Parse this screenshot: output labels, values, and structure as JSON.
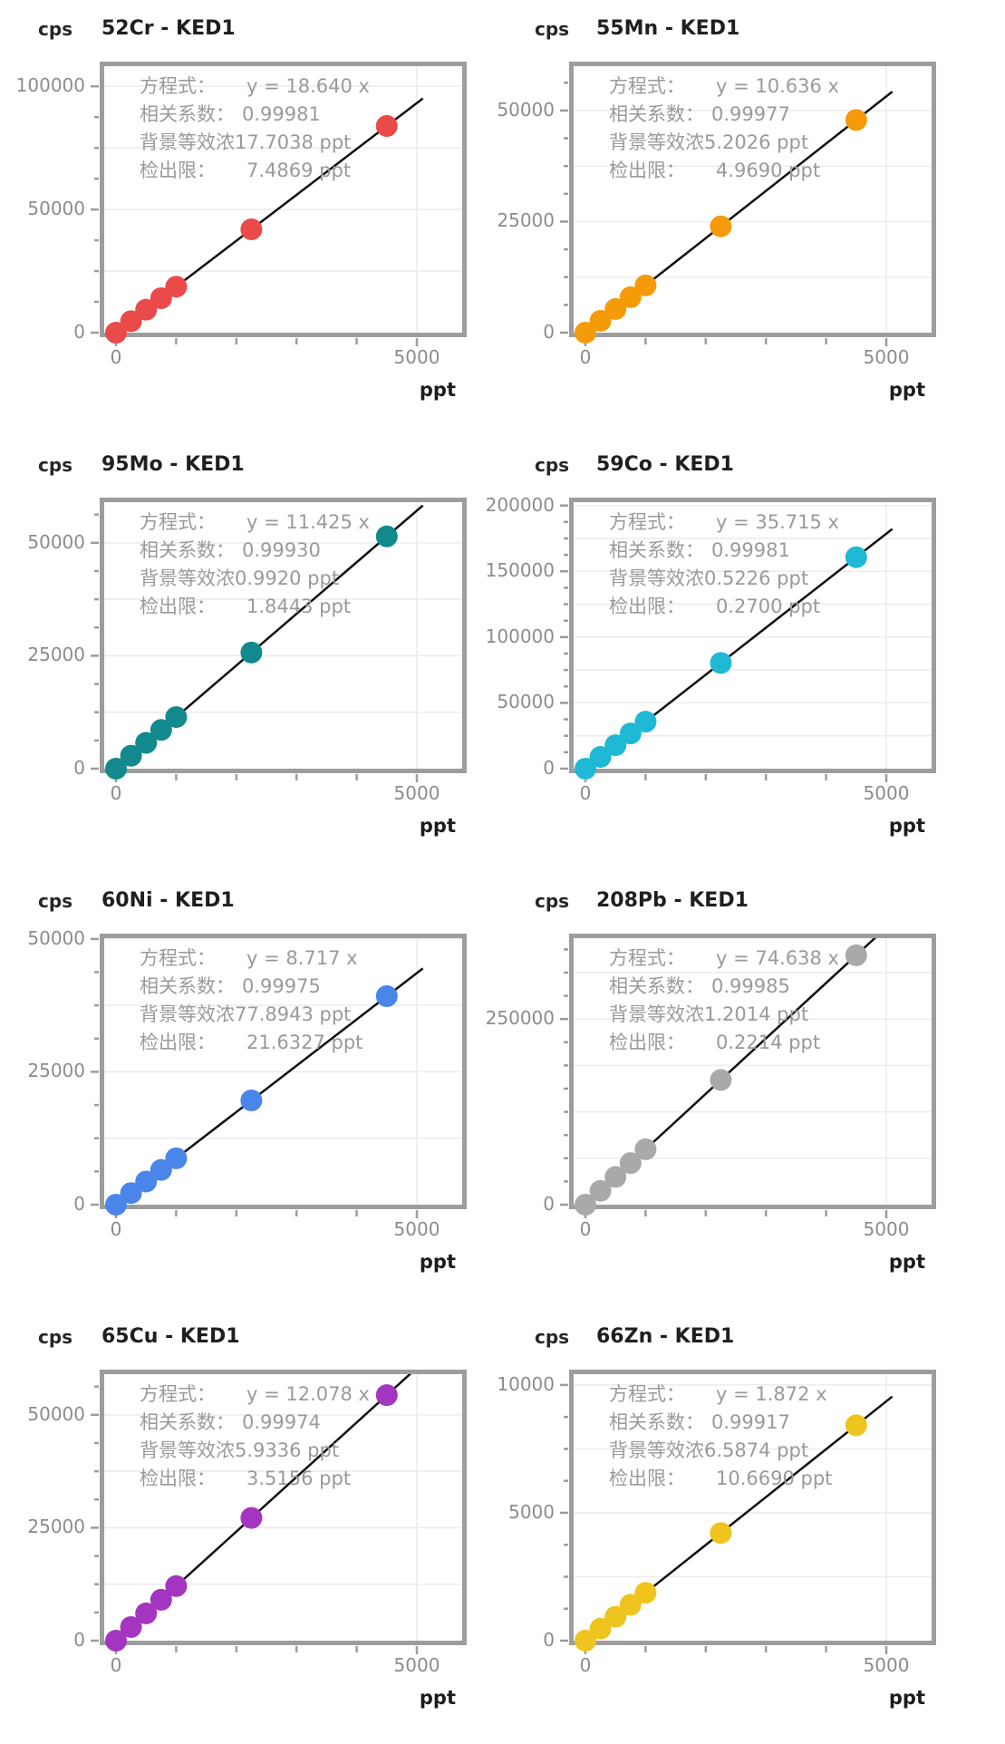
{
  "page": {
    "background": "#ffffff"
  },
  "style": {
    "axis_color": "#9d9d9d",
    "grid_color": "#ececec",
    "fit_line_color": "#111111",
    "annotation_text_color": "#9a9a9a",
    "tick_label_color": "#8c8c8c",
    "title_color": "#1f1f1f"
  },
  "chart_data": [
    {
      "type": "scatter",
      "title": "52Cr - KED1",
      "ylabel": "cps",
      "xlabel": "ppt",
      "slope": 18.64,
      "point_color": "#ea4a4a",
      "x": [
        0,
        250,
        500,
        750,
        1000,
        2250,
        4500
      ],
      "y": [
        0,
        4660,
        9320,
        13980,
        18640,
        41940,
        83880
      ],
      "xlim": [
        0,
        5828
      ],
      "ylim": [
        0,
        110000
      ],
      "fit_line": {
        "from_x": 0,
        "to_x": 5100
      },
      "x_ticks": [
        {
          "value": 0,
          "label": "0"
        },
        {
          "value": 5000,
          "label": "5000"
        }
      ],
      "y_ticks": [
        {
          "value": 0,
          "label": "0"
        },
        {
          "value": 50000,
          "label": "50000"
        },
        {
          "value": 100000,
          "label": "100000"
        }
      ],
      "y_grid_step": 25000,
      "y_minor_step": 12500,
      "x_minor_step": 1000,
      "annotations": {
        "equation_label": "方程式：",
        "equation_value": "y = 18.640 x",
        "correlation_label": "相关系数：",
        "correlation_value": "0.99981",
        "bec_label": "背景等效浓",
        "bec_value": "17.7038 ppt",
        "dl_label": "检出限：",
        "dl_value": "7.4869 ppt"
      }
    },
    {
      "type": "scatter",
      "title": "55Mn - KED1",
      "ylabel": "cps",
      "xlabel": "ppt",
      "slope": 10.636,
      "point_color": "#f59b0a",
      "x": [
        0,
        250,
        500,
        750,
        1000,
        2250,
        4500
      ],
      "y": [
        0,
        2659,
        5318,
        7977,
        10636,
        23931,
        47862
      ],
      "xlim": [
        0,
        5828
      ],
      "ylim": [
        0,
        61000
      ],
      "fit_line": {
        "from_x": 0,
        "to_x": 5100
      },
      "x_ticks": [
        {
          "value": 0,
          "label": "0"
        },
        {
          "value": 5000,
          "label": "5000"
        }
      ],
      "y_ticks": [
        {
          "value": 0,
          "label": "0"
        },
        {
          "value": 25000,
          "label": "25000"
        },
        {
          "value": 50000,
          "label": "50000"
        }
      ],
      "y_grid_step": 12500,
      "y_minor_step": 6250,
      "x_minor_step": 1000,
      "annotations": {
        "equation_label": "方程式：",
        "equation_value": "y = 10.636 x",
        "correlation_label": "相关系数：",
        "correlation_value": "0.99977",
        "bec_label": "背景等效浓",
        "bec_value": "5.2026 ppt",
        "dl_label": "检出限：",
        "dl_value": "4.9690 ppt"
      }
    },
    {
      "type": "scatter",
      "title": "95Mo - KED1",
      "ylabel": "cps",
      "xlabel": "ppt",
      "slope": 11.425,
      "point_color": "#12898c",
      "x": [
        0,
        250,
        500,
        750,
        1000,
        2250,
        4500
      ],
      "y": [
        0,
        2856,
        5713,
        8569,
        11425,
        25706,
        51413
      ],
      "xlim": [
        0,
        5828
      ],
      "ylim": [
        0,
        60000
      ],
      "fit_line": {
        "from_x": 0,
        "to_x": 5100
      },
      "x_ticks": [
        {
          "value": 0,
          "label": "0"
        },
        {
          "value": 5000,
          "label": "5000"
        }
      ],
      "y_ticks": [
        {
          "value": 0,
          "label": "0"
        },
        {
          "value": 25000,
          "label": "25000"
        },
        {
          "value": 50000,
          "label": "50000"
        }
      ],
      "y_grid_step": 12500,
      "y_minor_step": 6250,
      "x_minor_step": 1000,
      "annotations": {
        "equation_label": "方程式：",
        "equation_value": "y = 11.425 x",
        "correlation_label": "相关系数：",
        "correlation_value": "0.99930",
        "bec_label": "背景等效浓",
        "bec_value": "0.9920 ppt",
        "dl_label": "检出限：",
        "dl_value": "1.8443 ppt"
      }
    },
    {
      "type": "scatter",
      "title": "59Co - KED1",
      "ylabel": "cps",
      "xlabel": "ppt",
      "slope": 35.715,
      "point_color": "#1fb9d5",
      "x": [
        0,
        250,
        500,
        750,
        1000,
        2250,
        4500
      ],
      "y": [
        0,
        8929,
        17858,
        26786,
        35715,
        80359,
        160718
      ],
      "xlim": [
        0,
        5828
      ],
      "ylim": [
        0,
        206000
      ],
      "fit_line": {
        "from_x": 0,
        "to_x": 5100
      },
      "x_ticks": [
        {
          "value": 0,
          "label": "0"
        },
        {
          "value": 5000,
          "label": "5000"
        }
      ],
      "y_ticks": [
        {
          "value": 0,
          "label": "0"
        },
        {
          "value": 50000,
          "label": "50000"
        },
        {
          "value": 100000,
          "label": "100000"
        },
        {
          "value": 150000,
          "label": "150000"
        },
        {
          "value": 200000,
          "label": "200000"
        }
      ],
      "y_grid_step": 25000,
      "y_minor_step": 12500,
      "x_minor_step": 1000,
      "annotations": {
        "equation_label": "方程式：",
        "equation_value": "y = 35.715 x",
        "correlation_label": "相关系数：",
        "correlation_value": "0.99981",
        "bec_label": "背景等效浓",
        "bec_value": "0.5226 ppt",
        "dl_label": "检出限：",
        "dl_value": "0.2700 ppt"
      }
    },
    {
      "type": "scatter",
      "title": "60Ni - KED1",
      "ylabel": "cps",
      "xlabel": "ppt",
      "slope": 8.717,
      "point_color": "#4a86ea",
      "x": [
        0,
        250,
        500,
        750,
        1000,
        2250,
        4500
      ],
      "y": [
        0,
        2179,
        4359,
        6538,
        8717,
        19613,
        39227
      ],
      "xlim": [
        0,
        5828
      ],
      "ylim": [
        0,
        51000
      ],
      "fit_line": {
        "from_x": 0,
        "to_x": 5100
      },
      "x_ticks": [
        {
          "value": 0,
          "label": "0"
        },
        {
          "value": 5000,
          "label": "5000"
        }
      ],
      "y_ticks": [
        {
          "value": 0,
          "label": "0"
        },
        {
          "value": 25000,
          "label": "25000"
        },
        {
          "value": 50000,
          "label": "50000"
        }
      ],
      "y_grid_step": 12500,
      "y_minor_step": 6250,
      "x_minor_step": 1000,
      "annotations": {
        "equation_label": "方程式：",
        "equation_value": "y = 8.717 x",
        "correlation_label": "相关系数：",
        "correlation_value": "0.99975",
        "bec_label": "背景等效浓",
        "bec_value": "77.8943 ppt",
        "dl_label": "检出限：",
        "dl_value": "21.6327 ppt"
      }
    },
    {
      "type": "scatter",
      "title": "208Pb - KED1",
      "ylabel": "cps",
      "xlabel": "ppt",
      "slope": 74.638,
      "point_color": "#a9a9a9",
      "x": [
        0,
        250,
        500,
        750,
        1000,
        2250,
        4500
      ],
      "y": [
        0,
        18660,
        37319,
        55979,
        74638,
        167936,
        335871
      ],
      "xlim": [
        0,
        5828
      ],
      "ylim": [
        0,
        365000
      ],
      "fit_line": {
        "from_x": 0,
        "to_x": 5100
      },
      "x_ticks": [
        {
          "value": 0,
          "label": "0"
        },
        {
          "value": 5000,
          "label": "5000"
        }
      ],
      "y_ticks": [
        {
          "value": 0,
          "label": "0"
        },
        {
          "value": 250000,
          "label": "250000"
        }
      ],
      "y_grid_step": 62500,
      "y_minor_step": 31250,
      "x_minor_step": 1000,
      "annotations": {
        "equation_label": "方程式：",
        "equation_value": "y = 74.638 x",
        "correlation_label": "相关系数：",
        "correlation_value": "0.99985",
        "bec_label": "背景等效浓",
        "bec_value": "1.2014 ppt",
        "dl_label": "检出限：",
        "dl_value": "0.2214 ppt"
      }
    },
    {
      "type": "scatter",
      "title": "65Cu - KED1",
      "ylabel": "cps",
      "xlabel": "ppt",
      "slope": 12.078,
      "point_color": "#a335c0",
      "x": [
        0,
        250,
        500,
        750,
        1000,
        2250,
        4500
      ],
      "y": [
        0,
        3020,
        6039,
        9059,
        12078,
        27176,
        54351
      ],
      "xlim": [
        0,
        5828
      ],
      "ylim": [
        0,
        60000
      ],
      "fit_line": {
        "from_x": 0,
        "to_x": 5100
      },
      "x_ticks": [
        {
          "value": 0,
          "label": "0"
        },
        {
          "value": 5000,
          "label": "5000"
        }
      ],
      "y_ticks": [
        {
          "value": 0,
          "label": "0"
        },
        {
          "value": 25000,
          "label": "25000"
        },
        {
          "value": 50000,
          "label": "50000"
        }
      ],
      "y_grid_step": 12500,
      "y_minor_step": 6250,
      "x_minor_step": 1000,
      "annotations": {
        "equation_label": "方程式：",
        "equation_value": "y = 12.078 x",
        "correlation_label": "相关系数：",
        "correlation_value": "0.99974",
        "bec_label": "背景等效浓",
        "bec_value": "5.9336 ppt",
        "dl_label": "检出限：",
        "dl_value": "3.5156 ppt"
      }
    },
    {
      "type": "scatter",
      "title": "66Zn - KED1",
      "ylabel": "cps",
      "xlabel": "ppt",
      "slope": 1.872,
      "point_color": "#f0c41f",
      "x": [
        0,
        250,
        500,
        750,
        1000,
        2250,
        4500
      ],
      "y": [
        0,
        468,
        936,
        1404,
        1872,
        4212,
        8424
      ],
      "xlim": [
        0,
        5828
      ],
      "ylim": [
        0,
        10600
      ],
      "fit_line": {
        "from_x": 0,
        "to_x": 5100
      },
      "x_ticks": [
        {
          "value": 0,
          "label": "0"
        },
        {
          "value": 5000,
          "label": "5000"
        }
      ],
      "y_ticks": [
        {
          "value": 0,
          "label": "0"
        },
        {
          "value": 5000,
          "label": "5000"
        },
        {
          "value": 10000,
          "label": "10000"
        }
      ],
      "y_grid_step": 2500,
      "y_minor_step": 1250,
      "x_minor_step": 1000,
      "annotations": {
        "equation_label": "方程式：",
        "equation_value": "y = 1.872 x",
        "correlation_label": "相关系数：",
        "correlation_value": "0.99917",
        "bec_label": "背景等效浓",
        "bec_value": "6.5874 ppt",
        "dl_label": "检出限：",
        "dl_value": "10.6690 ppt"
      }
    }
  ]
}
